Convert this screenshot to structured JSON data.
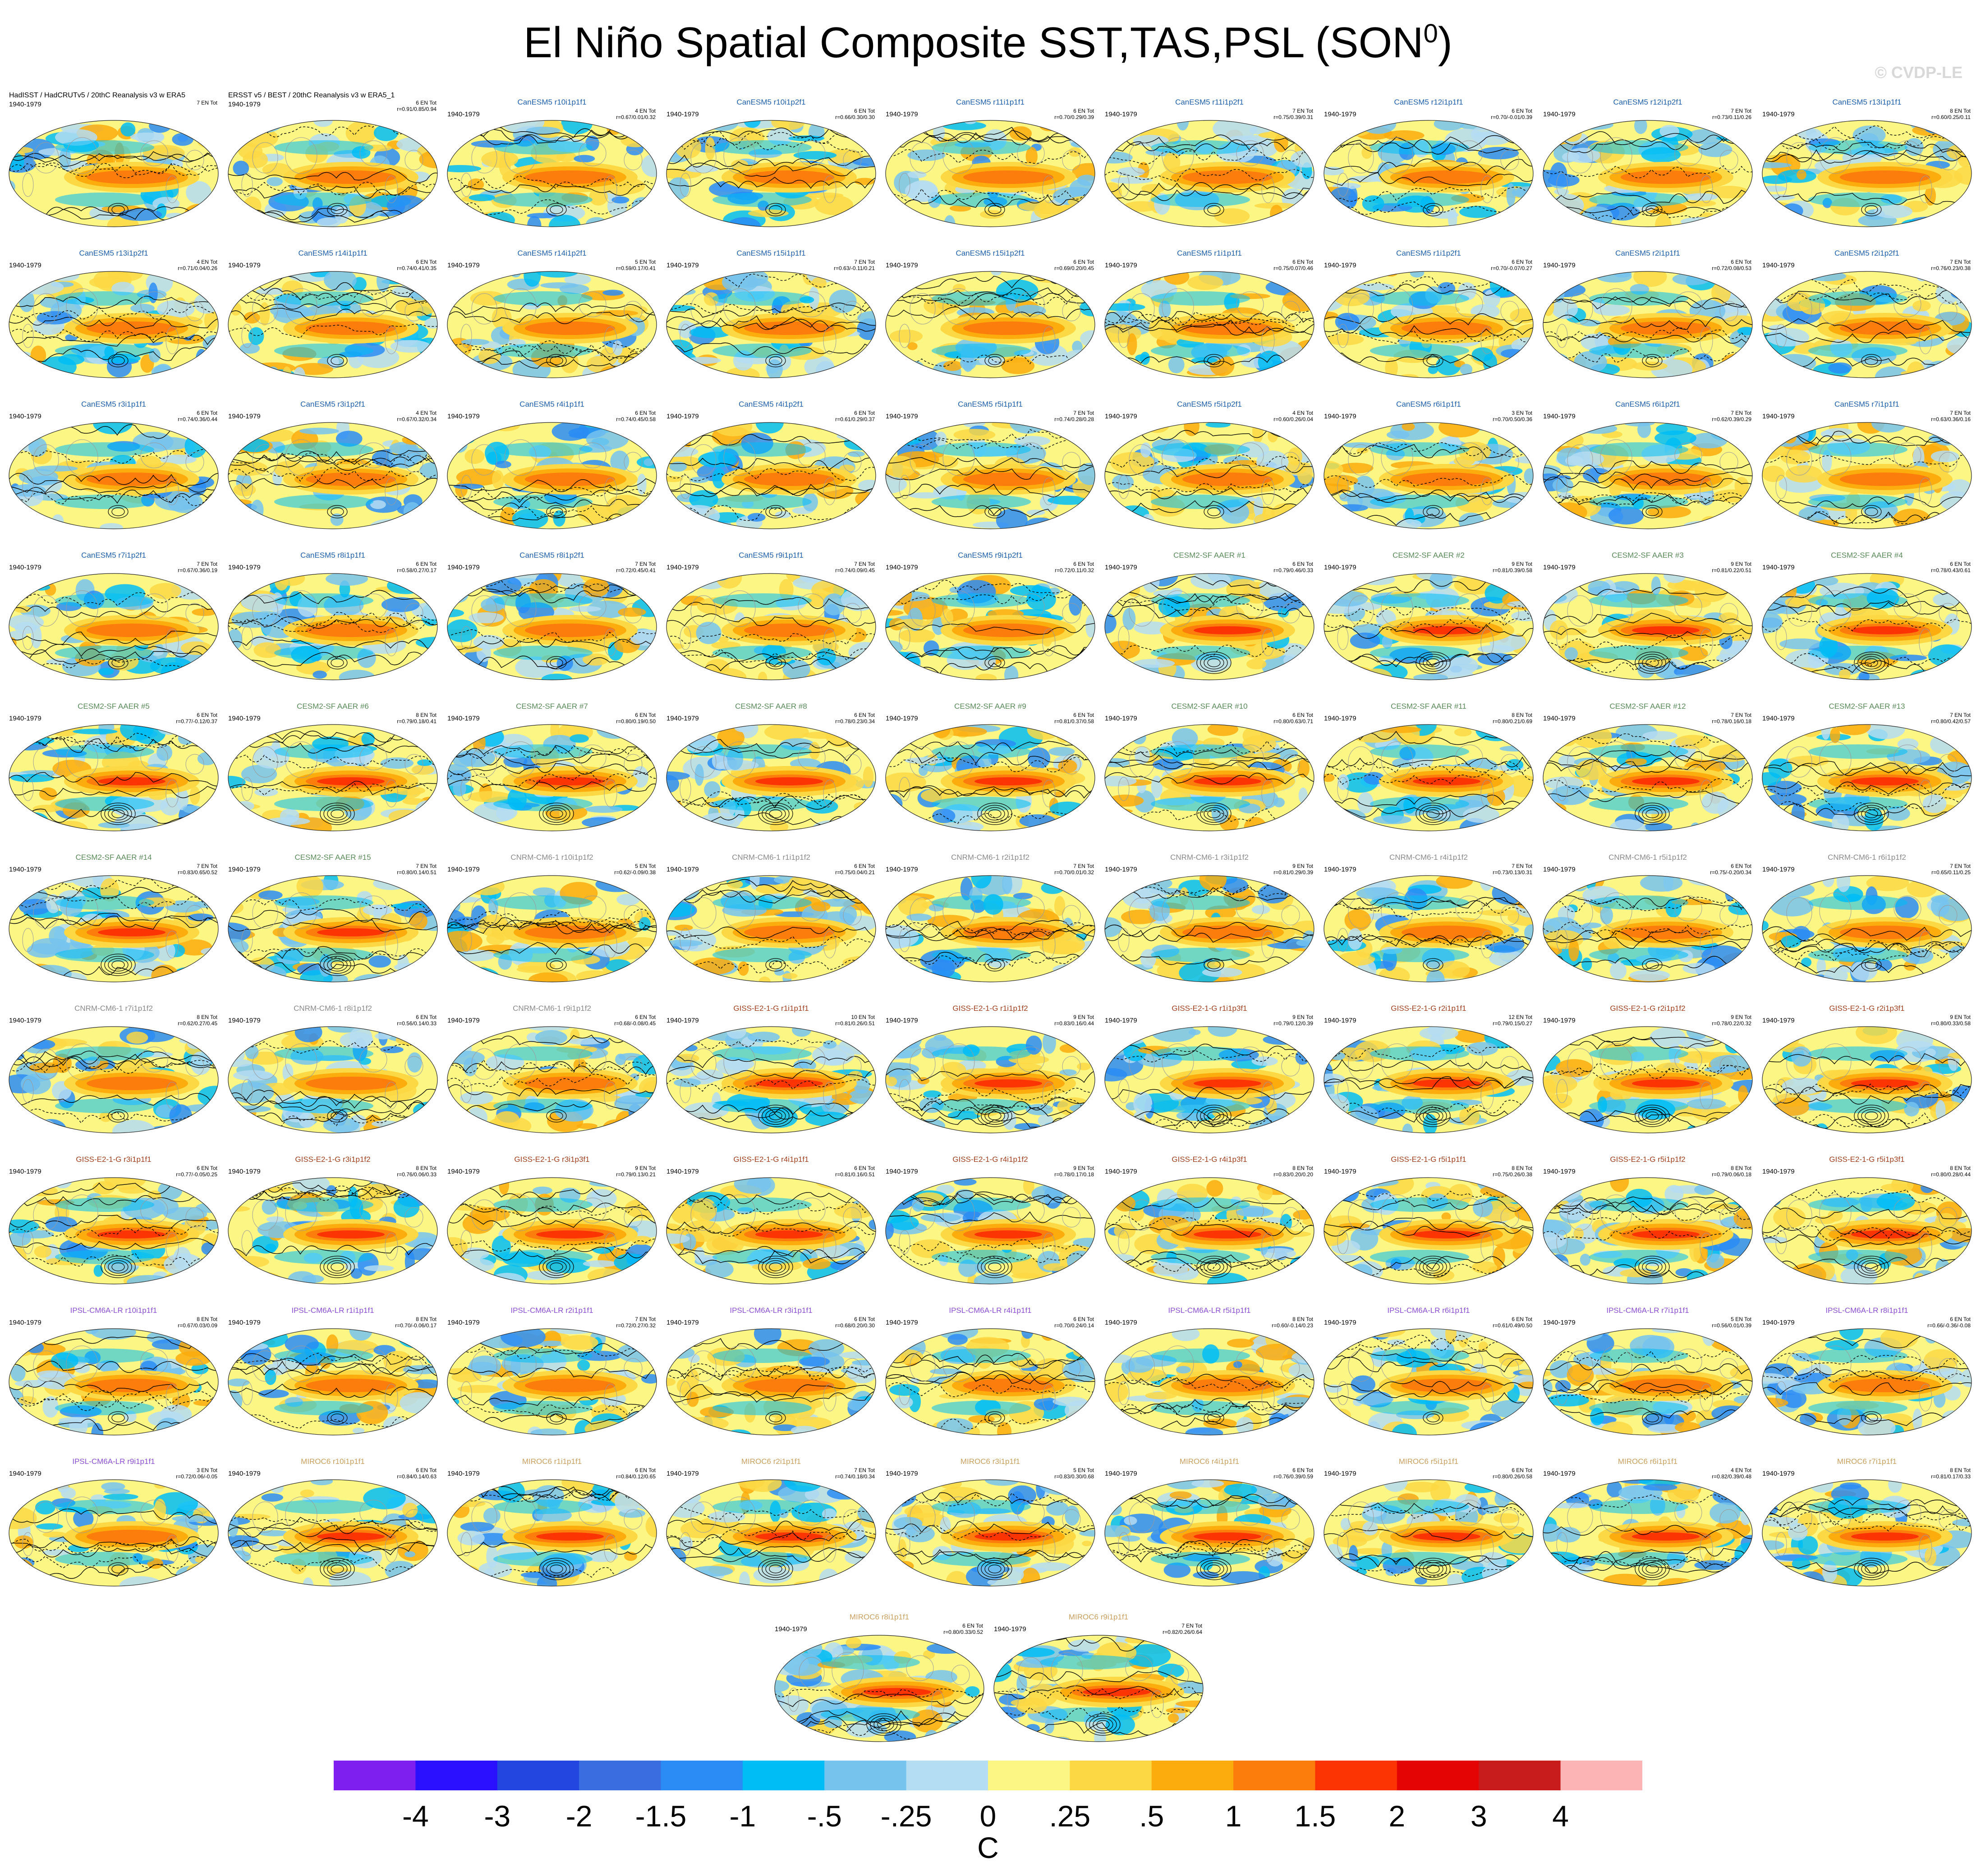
{
  "title_main": "El Niño Spatial Composite SST,TAS,PSL (SON",
  "title_sup": "0",
  "title_end": ")",
  "watermark": "© CVDP-LE",
  "colors": {
    "CanESM5": "#1f5fa8",
    "CESM2-SF AAER": "#5a8a5a",
    "CNRM-CM6-1": "#8a8a8a",
    "GISS-E2-1-G": "#a04020",
    "IPSL-CM6A-LR": "#8a4fd0",
    "MIROC6": "#c8a060",
    "OBS": "#000000"
  },
  "chart_data": {
    "type": "heatmap",
    "description_units": "C",
    "colorbar": {
      "labels": [
        "-4",
        "-3",
        "-2",
        "-1.5",
        "-1",
        "-.5",
        "-.25",
        "0",
        ".25",
        ".5",
        "1",
        "1.5",
        "2",
        "3",
        "4"
      ],
      "units": "C",
      "colors": [
        "#7f1fef",
        "#2a10ff",
        "#2446e0",
        "#3a6ee0",
        "#2a8cf4",
        "#00bdf5",
        "#76c3ee",
        "#b4dcf2",
        "#fcf684",
        "#fcd844",
        "#fcac0c",
        "#fc7c0c",
        "#fc3404",
        "#e40404",
        "#c81c1c",
        "#fcb4b4"
      ]
    },
    "panels": [
      {
        "name": "HadISST / HadCRUTv5 / 20thC Reanalysis v3 w ERA5",
        "group": "OBS",
        "period": "1940-1979",
        "count": "7 EN Tot",
        "stats": ""
      },
      {
        "name": "ERSST v5 / BEST / 20thC Reanalysis v3 w ERA5_1",
        "group": "OBS",
        "period": "1940-1979",
        "count": "6 EN Tot",
        "stats": "r=0.91/0.85/0.94"
      },
      {
        "name": "CanESM5 r10i1p1f1",
        "group": "CanESM5",
        "period": "1940-1979",
        "count": "4 EN Tot",
        "stats": "r=0.67/0.01/0.32"
      },
      {
        "name": "CanESM5 r10i1p2f1",
        "group": "CanESM5",
        "period": "1940-1979",
        "count": "6 EN Tot",
        "stats": "r=0.66/0.30/0.30"
      },
      {
        "name": "CanESM5 r11i1p1f1",
        "group": "CanESM5",
        "period": "1940-1979",
        "count": "6 EN Tot",
        "stats": "r=0.70/0.29/0.39"
      },
      {
        "name": "CanESM5 r11i1p2f1",
        "group": "CanESM5",
        "period": "1940-1979",
        "count": "7 EN Tot",
        "stats": "r=0.75/0.39/0.31"
      },
      {
        "name": "CanESM5 r12i1p1f1",
        "group": "CanESM5",
        "period": "1940-1979",
        "count": "6 EN Tot",
        "stats": "r=0.70/-0.01/0.39"
      },
      {
        "name": "CanESM5 r12i1p2f1",
        "group": "CanESM5",
        "period": "1940-1979",
        "count": "7 EN Tot",
        "stats": "r=0.73/0.11/0.26"
      },
      {
        "name": "CanESM5 r13i1p1f1",
        "group": "CanESM5",
        "period": "1940-1979",
        "count": "8 EN Tot",
        "stats": "r=0.60/0.25/0.11"
      },
      {
        "name": "CanESM5 r13i1p2f1",
        "group": "CanESM5",
        "period": "1940-1979",
        "count": "4 EN Tot",
        "stats": "r=0.71/0.04/0.26"
      },
      {
        "name": "CanESM5 r14i1p1f1",
        "group": "CanESM5",
        "period": "1940-1979",
        "count": "6 EN Tot",
        "stats": "r=0.74/0.41/0.35"
      },
      {
        "name": "CanESM5 r14i1p2f1",
        "group": "CanESM5",
        "period": "1940-1979",
        "count": "5 EN Tot",
        "stats": "r=0.59/0.17/0.41"
      },
      {
        "name": "CanESM5 r15i1p1f1",
        "group": "CanESM5",
        "period": "1940-1979",
        "count": "7 EN Tot",
        "stats": "r=0.63/-0.11/0.21"
      },
      {
        "name": "CanESM5 r15i1p2f1",
        "group": "CanESM5",
        "period": "1940-1979",
        "count": "6 EN Tot",
        "stats": "r=0.69/0.20/0.45"
      },
      {
        "name": "CanESM5 r1i1p1f1",
        "group": "CanESM5",
        "period": "1940-1979",
        "count": "6 EN Tot",
        "stats": "r=0.75/0.07/0.46"
      },
      {
        "name": "CanESM5 r1i1p2f1",
        "group": "CanESM5",
        "period": "1940-1979",
        "count": "6 EN Tot",
        "stats": "r=0.70/-0.07/0.27"
      },
      {
        "name": "CanESM5 r2i1p1f1",
        "group": "CanESM5",
        "period": "1940-1979",
        "count": "6 EN Tot",
        "stats": "r=0.72/0.08/0.53"
      },
      {
        "name": "CanESM5 r2i1p2f1",
        "group": "CanESM5",
        "period": "1940-1979",
        "count": "7 EN Tot",
        "stats": "r=0.76/0.23/0.38"
      },
      {
        "name": "CanESM5 r3i1p1f1",
        "group": "CanESM5",
        "period": "1940-1979",
        "count": "6 EN Tot",
        "stats": "r=0.74/0.36/0.44"
      },
      {
        "name": "CanESM5 r3i1p2f1",
        "group": "CanESM5",
        "period": "1940-1979",
        "count": "4 EN Tot",
        "stats": "r=0.67/0.32/0.34"
      },
      {
        "name": "CanESM5 r4i1p1f1",
        "group": "CanESM5",
        "period": "1940-1979",
        "count": "6 EN Tot",
        "stats": "r=0.74/0.45/0.58"
      },
      {
        "name": "CanESM5 r4i1p2f1",
        "group": "CanESM5",
        "period": "1940-1979",
        "count": "6 EN Tot",
        "stats": "r=0.61/0.29/0.37"
      },
      {
        "name": "CanESM5 r5i1p1f1",
        "group": "CanESM5",
        "period": "1940-1979",
        "count": "7 EN Tot",
        "stats": "r=0.74/0.28/0.28"
      },
      {
        "name": "CanESM5 r5i1p2f1",
        "group": "CanESM5",
        "period": "1940-1979",
        "count": "4 EN Tot",
        "stats": "r=0.60/0.26/0.04"
      },
      {
        "name": "CanESM5 r6i1p1f1",
        "group": "CanESM5",
        "period": "1940-1979",
        "count": "3 EN Tot",
        "stats": "r=0.70/0.50/0.36"
      },
      {
        "name": "CanESM5 r6i1p2f1",
        "group": "CanESM5",
        "period": "1940-1979",
        "count": "7 EN Tot",
        "stats": "r=0.62/0.39/0.29"
      },
      {
        "name": "CanESM5 r7i1p1f1",
        "group": "CanESM5",
        "period": "1940-1979",
        "count": "7 EN Tot",
        "stats": "r=0.63/0.36/0.16"
      },
      {
        "name": "CanESM5 r7i1p2f1",
        "group": "CanESM5",
        "period": "1940-1979",
        "count": "7 EN Tot",
        "stats": "r=0.67/0.36/0.19"
      },
      {
        "name": "CanESM5 r8i1p1f1",
        "group": "CanESM5",
        "period": "1940-1979",
        "count": "6 EN Tot",
        "stats": "r=0.58/0.27/0.17"
      },
      {
        "name": "CanESM5 r8i1p2f1",
        "group": "CanESM5",
        "period": "1940-1979",
        "count": "7 EN Tot",
        "stats": "r=0.72/0.45/0.41"
      },
      {
        "name": "CanESM5 r9i1p1f1",
        "group": "CanESM5",
        "period": "1940-1979",
        "count": "7 EN Tot",
        "stats": "r=0.74/0.09/0.45"
      },
      {
        "name": "CanESM5 r9i1p2f1",
        "group": "CanESM5",
        "period": "1940-1979",
        "count": "6 EN Tot",
        "stats": "r=0.72/0.11/0.32"
      },
      {
        "name": "CESM2-SF AAER #1",
        "group": "CESM2-SF AAER",
        "period": "1940-1979",
        "count": "6 EN Tot",
        "stats": "r=0.79/0.46/0.33"
      },
      {
        "name": "CESM2-SF AAER #2",
        "group": "CESM2-SF AAER",
        "period": "1940-1979",
        "count": "9 EN Tot",
        "stats": "r=0.81/0.39/0.58"
      },
      {
        "name": "CESM2-SF AAER #3",
        "group": "CESM2-SF AAER",
        "period": "1940-1979",
        "count": "9 EN Tot",
        "stats": "r=0.81/0.22/0.51"
      },
      {
        "name": "CESM2-SF AAER #4",
        "group": "CESM2-SF AAER",
        "period": "1940-1979",
        "count": "6 EN Tot",
        "stats": "r=0.78/0.43/0.61"
      },
      {
        "name": "CESM2-SF AAER #5",
        "group": "CESM2-SF AAER",
        "period": "1940-1979",
        "count": "6 EN Tot",
        "stats": "r=0.77/-0.12/0.37"
      },
      {
        "name": "CESM2-SF AAER #6",
        "group": "CESM2-SF AAER",
        "period": "1940-1979",
        "count": "8 EN Tot",
        "stats": "r=0.79/0.18/0.41"
      },
      {
        "name": "CESM2-SF AAER #7",
        "group": "CESM2-SF AAER",
        "period": "1940-1979",
        "count": "6 EN Tot",
        "stats": "r=0.80/0.19/0.50"
      },
      {
        "name": "CESM2-SF AAER #8",
        "group": "CESM2-SF AAER",
        "period": "1940-1979",
        "count": "6 EN Tot",
        "stats": "r=0.78/0.23/0.34"
      },
      {
        "name": "CESM2-SF AAER #9",
        "group": "CESM2-SF AAER",
        "period": "1940-1979",
        "count": "6 EN Tot",
        "stats": "r=0.81/0.37/0.58"
      },
      {
        "name": "CESM2-SF AAER #10",
        "group": "CESM2-SF AAER",
        "period": "1940-1979",
        "count": "6 EN Tot",
        "stats": "r=0.80/0.63/0.71"
      },
      {
        "name": "CESM2-SF AAER #11",
        "group": "CESM2-SF AAER",
        "period": "1940-1979",
        "count": "8 EN Tot",
        "stats": "r=0.80/0.21/0.69"
      },
      {
        "name": "CESM2-SF AAER #12",
        "group": "CESM2-SF AAER",
        "period": "1940-1979",
        "count": "7 EN Tot",
        "stats": "r=0.78/0.16/0.18"
      },
      {
        "name": "CESM2-SF AAER #13",
        "group": "CESM2-SF AAER",
        "period": "1940-1979",
        "count": "7 EN Tot",
        "stats": "r=0.80/0.42/0.57"
      },
      {
        "name": "CESM2-SF AAER #14",
        "group": "CESM2-SF AAER",
        "period": "1940-1979",
        "count": "7 EN Tot",
        "stats": "r=0.83/0.65/0.52"
      },
      {
        "name": "CESM2-SF AAER #15",
        "group": "CESM2-SF AAER",
        "period": "1940-1979",
        "count": "7 EN Tot",
        "stats": "r=0.80/0.14/0.51"
      },
      {
        "name": "CNRM-CM6-1 r10i1p1f2",
        "group": "CNRM-CM6-1",
        "period": "1940-1979",
        "count": "5 EN Tot",
        "stats": "r=0.62/-0.09/0.38"
      },
      {
        "name": "CNRM-CM6-1 r1i1p1f2",
        "group": "CNRM-CM6-1",
        "period": "1940-1979",
        "count": "6 EN Tot",
        "stats": "r=0.75/0.04/0.21"
      },
      {
        "name": "CNRM-CM6-1 r2i1p1f2",
        "group": "CNRM-CM6-1",
        "period": "1940-1979",
        "count": "7 EN Tot",
        "stats": "r=0.70/0.01/0.32"
      },
      {
        "name": "CNRM-CM6-1 r3i1p1f2",
        "group": "CNRM-CM6-1",
        "period": "1940-1979",
        "count": "9 EN Tot",
        "stats": "r=0.81/0.29/0.39"
      },
      {
        "name": "CNRM-CM6-1 r4i1p1f2",
        "group": "CNRM-CM6-1",
        "period": "1940-1979",
        "count": "7 EN Tot",
        "stats": "r=0.73/0.13/0.31"
      },
      {
        "name": "CNRM-CM6-1 r5i1p1f2",
        "group": "CNRM-CM6-1",
        "period": "1940-1979",
        "count": "6 EN Tot",
        "stats": "r=0.75/-0.20/0.34"
      },
      {
        "name": "CNRM-CM6-1 r6i1p1f2",
        "group": "CNRM-CM6-1",
        "period": "1940-1979",
        "count": "7 EN Tot",
        "stats": "r=0.65/0.11/0.25"
      },
      {
        "name": "CNRM-CM6-1 r7i1p1f2",
        "group": "CNRM-CM6-1",
        "period": "1940-1979",
        "count": "8 EN Tot",
        "stats": "r=0.62/0.27/0.45"
      },
      {
        "name": "CNRM-CM6-1 r8i1p1f2",
        "group": "CNRM-CM6-1",
        "period": "1940-1979",
        "count": "6 EN Tot",
        "stats": "r=0.56/0.14/0.33"
      },
      {
        "name": "CNRM-CM6-1 r9i1p1f2",
        "group": "CNRM-CM6-1",
        "period": "1940-1979",
        "count": "6 EN Tot",
        "stats": "r=0.68/-0.08/0.45"
      },
      {
        "name": "GISS-E2-1-G r1i1p1f1",
        "group": "GISS-E2-1-G",
        "period": "1940-1979",
        "count": "10 EN Tot",
        "stats": "r=0.81/0.26/0.51"
      },
      {
        "name": "GISS-E2-1-G r1i1p1f2",
        "group": "GISS-E2-1-G",
        "period": "1940-1979",
        "count": "9 EN Tot",
        "stats": "r=0.83/0.16/0.44"
      },
      {
        "name": "GISS-E2-1-G r1i1p3f1",
        "group": "GISS-E2-1-G",
        "period": "1940-1979",
        "count": "9 EN Tot",
        "stats": "r=0.79/0.12/0.39"
      },
      {
        "name": "GISS-E2-1-G r2i1p1f1",
        "group": "GISS-E2-1-G",
        "period": "1940-1979",
        "count": "12 EN Tot",
        "stats": "r=0.79/0.15/0.27"
      },
      {
        "name": "GISS-E2-1-G r2i1p1f2",
        "group": "GISS-E2-1-G",
        "period": "1940-1979",
        "count": "9 EN Tot",
        "stats": "r=0.78/0.22/0.32"
      },
      {
        "name": "GISS-E2-1-G r2i1p3f1",
        "group": "GISS-E2-1-G",
        "period": "1940-1979",
        "count": "9 EN Tot",
        "stats": "r=0.80/0.33/0.58"
      },
      {
        "name": "GISS-E2-1-G r3i1p1f1",
        "group": "GISS-E2-1-G",
        "period": "1940-1979",
        "count": "6 EN Tot",
        "stats": "r=0.77/-0.05/0.25"
      },
      {
        "name": "GISS-E2-1-G r3i1p1f2",
        "group": "GISS-E2-1-G",
        "period": "1940-1979",
        "count": "8 EN Tot",
        "stats": "r=0.76/0.06/0.33"
      },
      {
        "name": "GISS-E2-1-G r3i1p3f1",
        "group": "GISS-E2-1-G",
        "period": "1940-1979",
        "count": "9 EN Tot",
        "stats": "r=0.79/0.13/0.21"
      },
      {
        "name": "GISS-E2-1-G r4i1p1f1",
        "group": "GISS-E2-1-G",
        "period": "1940-1979",
        "count": "6 EN Tot",
        "stats": "r=0.81/0.16/0.51"
      },
      {
        "name": "GISS-E2-1-G r4i1p1f2",
        "group": "GISS-E2-1-G",
        "period": "1940-1979",
        "count": "9 EN Tot",
        "stats": "r=0.78/0.17/0.18"
      },
      {
        "name": "GISS-E2-1-G r4i1p3f1",
        "group": "GISS-E2-1-G",
        "period": "1940-1979",
        "count": "8 EN Tot",
        "stats": "r=0.83/0.20/0.20"
      },
      {
        "name": "GISS-E2-1-G r5i1p1f1",
        "group": "GISS-E2-1-G",
        "period": "1940-1979",
        "count": "8 EN Tot",
        "stats": "r=0.75/0.26/0.38"
      },
      {
        "name": "GISS-E2-1-G r5i1p1f2",
        "group": "GISS-E2-1-G",
        "period": "1940-1979",
        "count": "8 EN Tot",
        "stats": "r=0.79/0.06/0.18"
      },
      {
        "name": "GISS-E2-1-G r5i1p3f1",
        "group": "GISS-E2-1-G",
        "period": "1940-1979",
        "count": "8 EN Tot",
        "stats": "r=0.80/0.28/0.44"
      },
      {
        "name": "IPSL-CM6A-LR r10i1p1f1",
        "group": "IPSL-CM6A-LR",
        "period": "1940-1979",
        "count": "8 EN Tot",
        "stats": "r=0.67/0.03/0.09"
      },
      {
        "name": "IPSL-CM6A-LR r1i1p1f1",
        "group": "IPSL-CM6A-LR",
        "period": "1940-1979",
        "count": "8 EN Tot",
        "stats": "r=0.70/-0.06/0.17"
      },
      {
        "name": "IPSL-CM6A-LR r2i1p1f1",
        "group": "IPSL-CM6A-LR",
        "period": "1940-1979",
        "count": "7 EN Tot",
        "stats": "r=0.72/0.27/0.32"
      },
      {
        "name": "IPSL-CM6A-LR r3i1p1f1",
        "group": "IPSL-CM6A-LR",
        "period": "1940-1979",
        "count": "6 EN Tot",
        "stats": "r=0.68/0.20/0.30"
      },
      {
        "name": "IPSL-CM6A-LR r4i1p1f1",
        "group": "IPSL-CM6A-LR",
        "period": "1940-1979",
        "count": "6 EN Tot",
        "stats": "r=0.70/0.24/0.14"
      },
      {
        "name": "IPSL-CM6A-LR r5i1p1f1",
        "group": "IPSL-CM6A-LR",
        "period": "1940-1979",
        "count": "8 EN Tot",
        "stats": "r=0.60/-0.14/0.23"
      },
      {
        "name": "IPSL-CM6A-LR r6i1p1f1",
        "group": "IPSL-CM6A-LR",
        "period": "1940-1979",
        "count": "6 EN Tot",
        "stats": "r=0.61/0.49/0.50"
      },
      {
        "name": "IPSL-CM6A-LR r7i1p1f1",
        "group": "IPSL-CM6A-LR",
        "period": "1940-1979",
        "count": "5 EN Tot",
        "stats": "r=0.56/0.01/0.39"
      },
      {
        "name": "IPSL-CM6A-LR r8i1p1f1",
        "group": "IPSL-CM6A-LR",
        "period": "1940-1979",
        "count": "6 EN Tot",
        "stats": "r=0.66/-0.36/-0.08"
      },
      {
        "name": "IPSL-CM6A-LR r9i1p1f1",
        "group": "IPSL-CM6A-LR",
        "period": "1940-1979",
        "count": "3 EN Tot",
        "stats": "r=0.72/0.06/-0.05"
      },
      {
        "name": "MIROC6 r10i1p1f1",
        "group": "MIROC6",
        "period": "1940-1979",
        "count": "6 EN Tot",
        "stats": "r=0.84/0.14/0.63"
      },
      {
        "name": "MIROC6 r1i1p1f1",
        "group": "MIROC6",
        "period": "1940-1979",
        "count": "6 EN Tot",
        "stats": "r=0.84/0.12/0.65"
      },
      {
        "name": "MIROC6 r2i1p1f1",
        "group": "MIROC6",
        "period": "1940-1979",
        "count": "7 EN Tot",
        "stats": "r=0.74/0.18/0.34"
      },
      {
        "name": "MIROC6 r3i1p1f1",
        "group": "MIROC6",
        "period": "1940-1979",
        "count": "5 EN Tot",
        "stats": "r=0.83/0.30/0.68"
      },
      {
        "name": "MIROC6 r4i1p1f1",
        "group": "MIROC6",
        "period": "1940-1979",
        "count": "6 EN Tot",
        "stats": "r=0.76/0.39/0.59"
      },
      {
        "name": "MIROC6 r5i1p1f1",
        "group": "MIROC6",
        "period": "1940-1979",
        "count": "6 EN Tot",
        "stats": "r=0.80/0.26/0.58"
      },
      {
        "name": "MIROC6 r6i1p1f1",
        "group": "MIROC6",
        "period": "1940-1979",
        "count": "4 EN Tot",
        "stats": "r=0.82/0.39/0.48"
      },
      {
        "name": "MIROC6 r7i1p1f1",
        "group": "MIROC6",
        "period": "1940-1979",
        "count": "8 EN Tot",
        "stats": "r=0.81/0.17/0.33"
      },
      {
        "name": "MIROC6 r8i1p1f1",
        "group": "MIROC6",
        "period": "1940-1979",
        "count": "6 EN Tot",
        "stats": "r=0.80/0.33/0.52"
      },
      {
        "name": "MIROC6 r9i1p1f1",
        "group": "MIROC6",
        "period": "1940-1979",
        "count": "7 EN Tot",
        "stats": "r=0.82/0.26/0.64"
      }
    ]
  }
}
